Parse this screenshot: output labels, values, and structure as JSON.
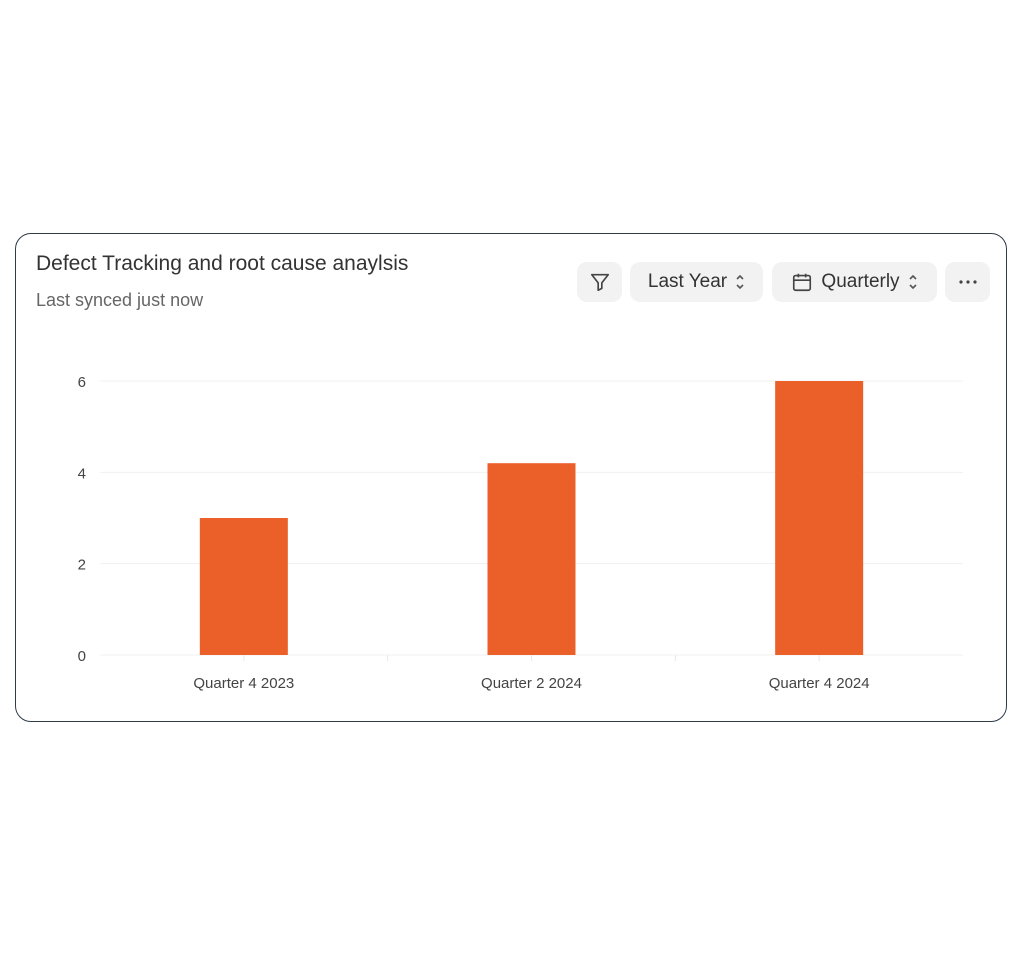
{
  "header": {
    "title": "Defect Tracking and root cause anaylsis",
    "subtitle": "Last synced just now"
  },
  "controls": {
    "filter_icon": "filter-icon",
    "range_label": "Last Year",
    "period_label": "Quarterly",
    "more_icon": "more-horizontal-icon"
  },
  "chart_data": {
    "type": "bar",
    "categories": [
      "Quarter 4 2023",
      "Quarter 2 2024",
      "Quarter 4 2024"
    ],
    "values": [
      3,
      4.2,
      6
    ],
    "ylim": [
      0,
      6
    ],
    "yticks": [
      0,
      2,
      4,
      6
    ],
    "grid": true,
    "color": "#eb5f28"
  }
}
